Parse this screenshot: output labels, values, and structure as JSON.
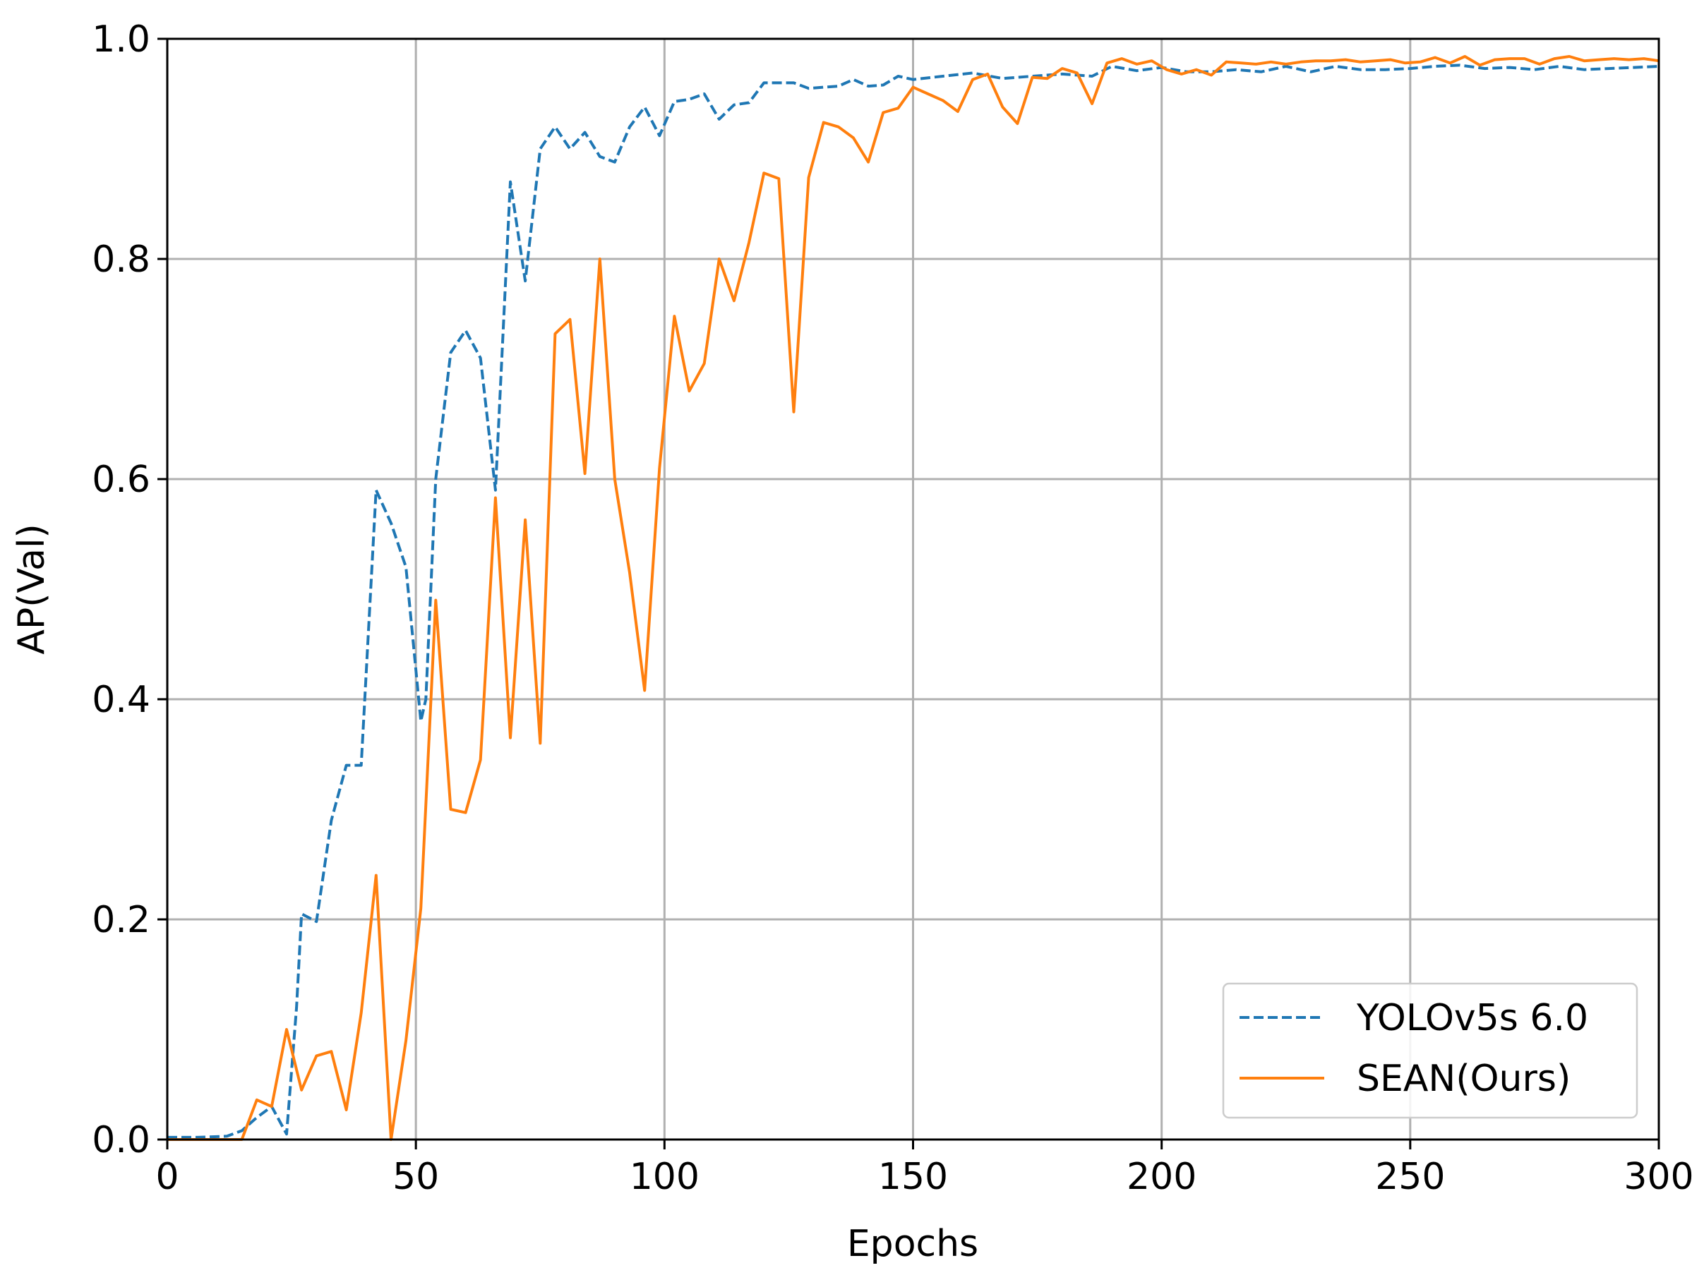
{
  "chart_data": {
    "type": "line",
    "xlabel": "Epochs",
    "ylabel": "AP(Val)",
    "xlim": [
      0,
      300
    ],
    "ylim": [
      0.0,
      1.0
    ],
    "xticks": [
      "0",
      "50",
      "100",
      "150",
      "200",
      "250",
      "300"
    ],
    "yticks": [
      "0.0",
      "0.2",
      "0.4",
      "0.6",
      "0.8",
      "1.0"
    ],
    "grid": true,
    "legend_position": "lower-right",
    "series": [
      {
        "name": "YOLOv5s 6.0",
        "color": "#1f77b4",
        "style": "dashed",
        "points": [
          [
            0,
            0.002
          ],
          [
            6,
            0.002
          ],
          [
            12,
            0.003
          ],
          [
            15,
            0.008
          ],
          [
            18,
            0.02
          ],
          [
            21,
            0.03
          ],
          [
            24,
            0.005
          ],
          [
            26,
            0.12
          ],
          [
            27,
            0.205
          ],
          [
            30,
            0.198
          ],
          [
            33,
            0.29
          ],
          [
            36,
            0.34
          ],
          [
            39,
            0.34
          ],
          [
            42,
            0.59
          ],
          [
            45,
            0.56
          ],
          [
            48,
            0.52
          ],
          [
            51,
            0.38
          ],
          [
            52,
            0.4
          ],
          [
            54,
            0.6
          ],
          [
            57,
            0.715
          ],
          [
            60,
            0.735
          ],
          [
            63,
            0.71
          ],
          [
            66,
            0.59
          ],
          [
            69,
            0.87
          ],
          [
            72,
            0.78
          ],
          [
            75,
            0.9
          ],
          [
            78,
            0.92
          ],
          [
            81,
            0.9
          ],
          [
            84,
            0.915
          ],
          [
            87,
            0.893
          ],
          [
            90,
            0.888
          ],
          [
            93,
            0.92
          ],
          [
            96,
            0.938
          ],
          [
            99,
            0.912
          ],
          [
            102,
            0.943
          ],
          [
            105,
            0.945
          ],
          [
            108,
            0.95
          ],
          [
            111,
            0.927
          ],
          [
            114,
            0.94
          ],
          [
            117,
            0.942
          ],
          [
            120,
            0.96
          ],
          [
            123,
            0.96
          ],
          [
            126,
            0.96
          ],
          [
            129,
            0.955
          ],
          [
            132,
            0.956
          ],
          [
            135,
            0.957
          ],
          [
            138,
            0.963
          ],
          [
            141,
            0.957
          ],
          [
            144,
            0.958
          ],
          [
            147,
            0.966
          ],
          [
            150,
            0.963
          ],
          [
            156,
            0.966
          ],
          [
            162,
            0.969
          ],
          [
            168,
            0.964
          ],
          [
            174,
            0.966
          ],
          [
            180,
            0.968
          ],
          [
            186,
            0.966
          ],
          [
            190,
            0.975
          ],
          [
            195,
            0.971
          ],
          [
            200,
            0.974
          ],
          [
            205,
            0.97
          ],
          [
            210,
            0.97
          ],
          [
            215,
            0.972
          ],
          [
            220,
            0.97
          ],
          [
            225,
            0.975
          ],
          [
            230,
            0.97
          ],
          [
            235,
            0.975
          ],
          [
            240,
            0.972
          ],
          [
            245,
            0.972
          ],
          [
            250,
            0.973
          ],
          [
            255,
            0.975
          ],
          [
            260,
            0.976
          ],
          [
            265,
            0.973
          ],
          [
            270,
            0.974
          ],
          [
            275,
            0.972
          ],
          [
            280,
            0.975
          ],
          [
            285,
            0.972
          ],
          [
            290,
            0.973
          ],
          [
            295,
            0.974
          ],
          [
            300,
            0.975
          ]
        ]
      },
      {
        "name": "SEAN(Ours)",
        "color": "#ff7f0e",
        "style": "solid",
        "points": [
          [
            0,
            0.0
          ],
          [
            15,
            0.0
          ],
          [
            18,
            0.036
          ],
          [
            21,
            0.03
          ],
          [
            24,
            0.1
          ],
          [
            27,
            0.045
          ],
          [
            30,
            0.076
          ],
          [
            33,
            0.08
          ],
          [
            36,
            0.027
          ],
          [
            39,
            0.115
          ],
          [
            42,
            0.24
          ],
          [
            45,
            0.0
          ],
          [
            48,
            0.09
          ],
          [
            51,
            0.21
          ],
          [
            54,
            0.49
          ],
          [
            57,
            0.3
          ],
          [
            60,
            0.297
          ],
          [
            63,
            0.345
          ],
          [
            66,
            0.583
          ],
          [
            69,
            0.365
          ],
          [
            72,
            0.563
          ],
          [
            75,
            0.36
          ],
          [
            78,
            0.732
          ],
          [
            81,
            0.745
          ],
          [
            84,
            0.605
          ],
          [
            87,
            0.8
          ],
          [
            90,
            0.6
          ],
          [
            93,
            0.515
          ],
          [
            96,
            0.408
          ],
          [
            99,
            0.61
          ],
          [
            102,
            0.748
          ],
          [
            105,
            0.68
          ],
          [
            108,
            0.705
          ],
          [
            111,
            0.8
          ],
          [
            114,
            0.762
          ],
          [
            117,
            0.815
          ],
          [
            120,
            0.878
          ],
          [
            123,
            0.873
          ],
          [
            126,
            0.661
          ],
          [
            129,
            0.874
          ],
          [
            132,
            0.924
          ],
          [
            135,
            0.92
          ],
          [
            138,
            0.91
          ],
          [
            141,
            0.888
          ],
          [
            144,
            0.933
          ],
          [
            147,
            0.937
          ],
          [
            150,
            0.956
          ],
          [
            153,
            0.95
          ],
          [
            156,
            0.944
          ],
          [
            159,
            0.934
          ],
          [
            162,
            0.963
          ],
          [
            165,
            0.968
          ],
          [
            168,
            0.938
          ],
          [
            171,
            0.923
          ],
          [
            174,
            0.965
          ],
          [
            177,
            0.964
          ],
          [
            180,
            0.973
          ],
          [
            183,
            0.969
          ],
          [
            186,
            0.941
          ],
          [
            189,
            0.978
          ],
          [
            192,
            0.982
          ],
          [
            195,
            0.977
          ],
          [
            198,
            0.98
          ],
          [
            201,
            0.972
          ],
          [
            204,
            0.968
          ],
          [
            207,
            0.972
          ],
          [
            210,
            0.967
          ],
          [
            213,
            0.979
          ],
          [
            216,
            0.978
          ],
          [
            219,
            0.977
          ],
          [
            222,
            0.979
          ],
          [
            225,
            0.977
          ],
          [
            228,
            0.979
          ],
          [
            231,
            0.98
          ],
          [
            234,
            0.98
          ],
          [
            237,
            0.981
          ],
          [
            240,
            0.979
          ],
          [
            243,
            0.98
          ],
          [
            246,
            0.981
          ],
          [
            249,
            0.978
          ],
          [
            252,
            0.979
          ],
          [
            255,
            0.983
          ],
          [
            258,
            0.978
          ],
          [
            261,
            0.984
          ],
          [
            264,
            0.976
          ],
          [
            267,
            0.981
          ],
          [
            270,
            0.982
          ],
          [
            273,
            0.982
          ],
          [
            276,
            0.977
          ],
          [
            279,
            0.982
          ],
          [
            282,
            0.984
          ],
          [
            285,
            0.98
          ],
          [
            288,
            0.981
          ],
          [
            291,
            0.982
          ],
          [
            294,
            0.981
          ],
          [
            297,
            0.982
          ],
          [
            300,
            0.98
          ]
        ]
      }
    ]
  }
}
